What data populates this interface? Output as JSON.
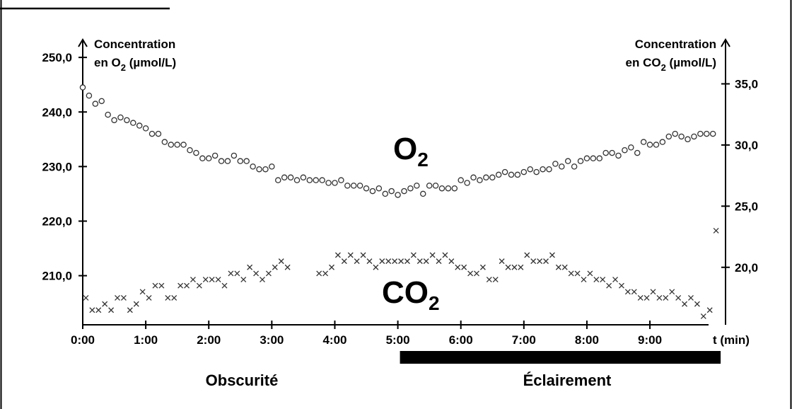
{
  "chart_data": {
    "type": "scatter",
    "title": "",
    "xlabel": "t (min)",
    "x_ticks": [
      "0:00",
      "1:00",
      "2:00",
      "3:00",
      "4:00",
      "5:00",
      "6:00",
      "7:00",
      "8:00",
      "9:00"
    ],
    "xlim": [
      0,
      10.2
    ],
    "ylabel_left_line1": "Concentration",
    "ylabel_left_line2": "en O",
    "ylabel_left_sub": "2",
    "ylabel_left_unit": " (µmol/L)",
    "ylabel_right_line1": "Concentration",
    "ylabel_right_line2": "en CO",
    "ylabel_right_sub": "2",
    "ylabel_right_unit": " (µmol/L)",
    "y_left_ticks": [
      "250,0",
      "240,0",
      "230,0",
      "220,0",
      "210,0"
    ],
    "y_left_values": [
      250,
      240,
      230,
      220,
      210
    ],
    "ylim_left": [
      201,
      253
    ],
    "y_right_ticks": [
      "35,0",
      "30,0",
      "25,0",
      "20,0"
    ],
    "y_right_values": [
      35,
      30,
      25,
      20
    ],
    "ylim_right": [
      15.3,
      38.5
    ],
    "grid": false,
    "phases": {
      "dark_label": "Obscurité",
      "light_label": "Éclairement",
      "light_start": 5.0,
      "light_end": 10.1
    },
    "series": [
      {
        "name": "O",
        "name_sub": "2",
        "marker": "circle",
        "axis": "left",
        "x": [
          0.0,
          0.1,
          0.2,
          0.3,
          0.4,
          0.5,
          0.6,
          0.7,
          0.8,
          0.9,
          1.0,
          1.1,
          1.2,
          1.3,
          1.4,
          1.5,
          1.6,
          1.7,
          1.8,
          1.9,
          2.0,
          2.1,
          2.2,
          2.3,
          2.4,
          2.5,
          2.6,
          2.7,
          2.8,
          2.9,
          3.0,
          3.1,
          3.2,
          3.3,
          3.4,
          3.5,
          3.6,
          3.7,
          3.8,
          3.9,
          4.0,
          4.1,
          4.2,
          4.3,
          4.4,
          4.5,
          4.6,
          4.7,
          4.8,
          4.9,
          5.0,
          5.1,
          5.2,
          5.3,
          5.4,
          5.5,
          5.6,
          5.7,
          5.8,
          5.9,
          6.0,
          6.1,
          6.2,
          6.3,
          6.4,
          6.5,
          6.6,
          6.7,
          6.8,
          6.9,
          7.0,
          7.1,
          7.2,
          7.3,
          7.4,
          7.5,
          7.6,
          7.7,
          7.8,
          7.9,
          8.0,
          8.1,
          8.2,
          8.3,
          8.4,
          8.5,
          8.6,
          8.7,
          8.8,
          8.9,
          9.0,
          9.1,
          9.2,
          9.3,
          9.4,
          9.5,
          9.6,
          9.7,
          9.8,
          9.9,
          10.0
        ],
        "values": [
          244.5,
          243.0,
          241.5,
          242.0,
          239.5,
          238.5,
          239.0,
          238.5,
          238.0,
          237.5,
          237.0,
          236.0,
          236.0,
          234.5,
          234.0,
          234.0,
          234.0,
          233.0,
          232.5,
          231.5,
          231.5,
          232.0,
          231.0,
          231.0,
          232.0,
          231.0,
          231.0,
          230.0,
          229.5,
          229.5,
          230.0,
          227.5,
          228.0,
          228.0,
          227.5,
          228.0,
          227.5,
          227.5,
          227.5,
          227.0,
          227.0,
          227.5,
          226.5,
          226.5,
          226.5,
          226.0,
          225.5,
          226.0,
          225.0,
          225.5,
          224.8,
          225.5,
          226.0,
          226.5,
          225.0,
          226.5,
          226.5,
          226.0,
          226.0,
          226.0,
          227.5,
          227.0,
          228.0,
          227.5,
          228.0,
          228.0,
          228.5,
          229.0,
          228.5,
          228.5,
          229.0,
          229.5,
          229.0,
          229.5,
          229.5,
          230.5,
          230.0,
          231.0,
          230.0,
          231.0,
          231.5,
          231.5,
          231.5,
          232.5,
          232.5,
          232.0,
          233.0,
          233.5,
          232.5,
          234.5,
          234.0,
          234.0,
          234.5,
          235.5,
          236.0,
          235.5,
          235.0,
          235.5,
          236.0,
          236.0,
          236.0
        ]
      },
      {
        "name": "CO",
        "name_sub": "2",
        "marker": "cross",
        "axis": "right",
        "x": [
          0.05,
          0.15,
          0.25,
          0.35,
          0.45,
          0.55,
          0.65,
          0.75,
          0.85,
          0.95,
          1.05,
          1.15,
          1.25,
          1.35,
          1.45,
          1.55,
          1.65,
          1.75,
          1.85,
          1.95,
          2.05,
          2.15,
          2.25,
          2.35,
          2.45,
          2.55,
          2.65,
          2.75,
          2.85,
          2.95,
          3.05,
          3.15,
          3.25,
          3.75,
          3.85,
          3.95,
          4.05,
          4.15,
          4.25,
          4.35,
          4.45,
          4.55,
          4.65,
          4.75,
          4.85,
          4.95,
          5.05,
          5.15,
          5.25,
          5.35,
          5.45,
          5.55,
          5.65,
          5.75,
          5.85,
          5.95,
          6.05,
          6.15,
          6.25,
          6.35,
          6.45,
          6.55,
          6.65,
          6.75,
          6.85,
          6.95,
          7.05,
          7.15,
          7.25,
          7.35,
          7.45,
          7.55,
          7.65,
          7.75,
          7.85,
          7.95,
          8.05,
          8.15,
          8.25,
          8.35,
          8.45,
          8.55,
          8.65,
          8.75,
          8.85,
          8.95,
          9.05,
          9.15,
          9.25,
          9.35,
          9.45,
          9.55,
          9.65,
          9.75,
          9.85,
          9.95,
          10.05
        ],
        "values": [
          17.5,
          16.5,
          16.5,
          17.0,
          16.5,
          17.5,
          17.5,
          16.5,
          17.0,
          18.0,
          17.5,
          18.5,
          18.5,
          17.5,
          17.5,
          18.5,
          18.5,
          19.0,
          18.5,
          19.0,
          19.0,
          19.0,
          18.5,
          19.5,
          19.5,
          19.0,
          20.0,
          19.5,
          19.0,
          19.5,
          20.0,
          20.5,
          20.0,
          19.5,
          19.5,
          20.0,
          21.0,
          20.5,
          21.0,
          20.5,
          21.0,
          20.5,
          20.0,
          20.5,
          20.5,
          20.5,
          20.5,
          20.5,
          21.0,
          20.5,
          20.5,
          21.0,
          20.5,
          21.0,
          20.5,
          20.0,
          20.0,
          19.5,
          19.5,
          20.0,
          19.0,
          19.0,
          20.5,
          20.0,
          20.0,
          20.0,
          21.0,
          20.5,
          20.5,
          20.5,
          21.0,
          20.0,
          20.0,
          19.5,
          19.5,
          19.0,
          19.5,
          19.0,
          19.0,
          18.5,
          19.0,
          18.5,
          18.0,
          18.0,
          17.5,
          17.5,
          18.0,
          17.5,
          17.5,
          18.0,
          17.5,
          17.0,
          17.5,
          17.0,
          16.0,
          16.5,
          23.0
        ]
      }
    ]
  }
}
